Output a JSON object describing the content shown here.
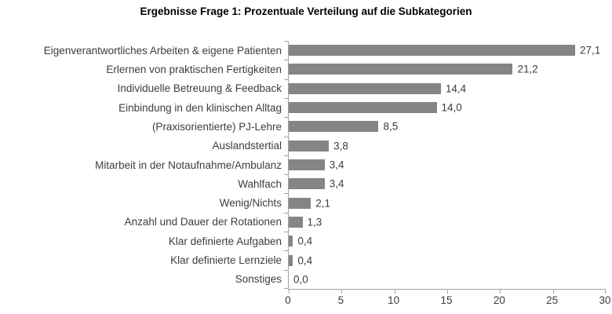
{
  "chart_data": {
    "type": "bar",
    "orientation": "horizontal",
    "title": "Ergebnisse Frage 1: Prozentuale Verteilung auf die Subkategorien",
    "categories": [
      "Eigenverantwortliches Arbeiten & eigene Patienten",
      "Erlernen von praktischen Fertigkeiten",
      "Individuelle Betreuung & Feedback",
      "Einbindung in den klinischen Alltag",
      "(Praxisorientierte) PJ-Lehre",
      "Auslandstertial",
      "Mitarbeit in der Notaufnahme/Ambulanz",
      "Wahlfach",
      "Wenig/Nichts",
      "Anzahl und Dauer der Rotationen",
      "Klar definierte Aufgaben",
      "Klar definierte Lernziele",
      "Sonstiges"
    ],
    "values": [
      27.1,
      21.2,
      14.4,
      14.0,
      8.5,
      3.8,
      3.4,
      3.4,
      2.1,
      1.3,
      0.4,
      0.4,
      0.0
    ],
    "value_labels": [
      "27,1",
      "21,2",
      "14,4",
      "14,0",
      "8,5",
      "3,8",
      "3,4",
      "3,4",
      "2,1",
      "1,3",
      "0,4",
      "0,4",
      "0,0"
    ],
    "x_ticks": [
      0,
      5,
      10,
      15,
      20,
      25,
      30
    ],
    "x_tick_labels": [
      "0",
      "5",
      "10",
      "15",
      "20",
      "25",
      "30"
    ],
    "xlim": [
      0,
      30
    ],
    "grid": false,
    "legend": false,
    "colors": {
      "bar": "#858585",
      "axis": "#a3a3a3",
      "text": "#3d3d3d",
      "title": "#000000",
      "background": "#ffffff"
    }
  }
}
